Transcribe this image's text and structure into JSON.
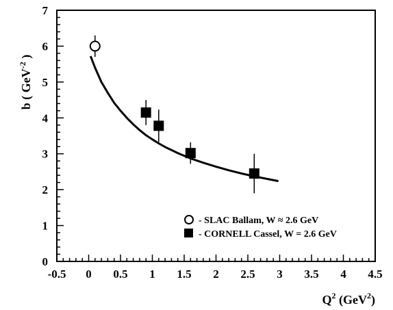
{
  "chart_data": {
    "type": "scatter",
    "xlim": [
      -0.5,
      4.5
    ],
    "ylim": [
      0,
      7
    ],
    "x_ticks": [
      "-0.5",
      "0",
      "0.5",
      "1",
      "1.5",
      "2",
      "2.5",
      "3",
      "3.5",
      "4",
      "4.5"
    ],
    "y_ticks": [
      "0",
      "1",
      "2",
      "3",
      "4",
      "5",
      "6",
      "7"
    ],
    "x_tick_values": [
      -0.5,
      0,
      0.5,
      1,
      1.5,
      2,
      2.5,
      3,
      3.5,
      4,
      4.5
    ],
    "y_tick_values": [
      0,
      1,
      2,
      3,
      4,
      5,
      6,
      7
    ],
    "xlabel": {
      "main": "Q",
      "sup": "2",
      "unit_open": " (GeV",
      "unit_sup": "2",
      "unit_close": ")"
    },
    "ylabel": {
      "main": "b ( GeV",
      "sup": "-2",
      "close": " )"
    },
    "grid": false,
    "legend_position": "bottom-right",
    "series": [
      {
        "name": "- SLAC Ballam, W ≈ 2.6 GeV",
        "marker": "open-circle",
        "points": [
          {
            "x": 0.1,
            "y": 6.0,
            "err": 0.3
          }
        ]
      },
      {
        "name": "- CORNELL Cassel, W = 2.6 GeV",
        "marker": "filled-square",
        "points": [
          {
            "x": 0.9,
            "y": 4.15,
            "err": 0.35
          },
          {
            "x": 1.1,
            "y": 3.78,
            "err": 0.45
          },
          {
            "x": 1.6,
            "y": 3.02,
            "err": 0.3
          },
          {
            "x": 2.6,
            "y": 2.45,
            "err": 0.55
          }
        ]
      }
    ],
    "fit_curve": {
      "x": [
        0.03,
        0.1,
        0.2,
        0.3,
        0.4,
        0.5,
        0.6,
        0.7,
        0.8,
        0.9,
        1.0,
        1.1,
        1.2,
        1.4,
        1.6,
        1.8,
        2.0,
        2.2,
        2.4,
        2.6,
        2.8,
        2.98
      ],
      "y": [
        5.72,
        5.4,
        5.0,
        4.7,
        4.42,
        4.2,
        4.0,
        3.82,
        3.66,
        3.52,
        3.4,
        3.29,
        3.19,
        3.02,
        2.87,
        2.75,
        2.64,
        2.54,
        2.45,
        2.37,
        2.3,
        2.24
      ]
    }
  }
}
